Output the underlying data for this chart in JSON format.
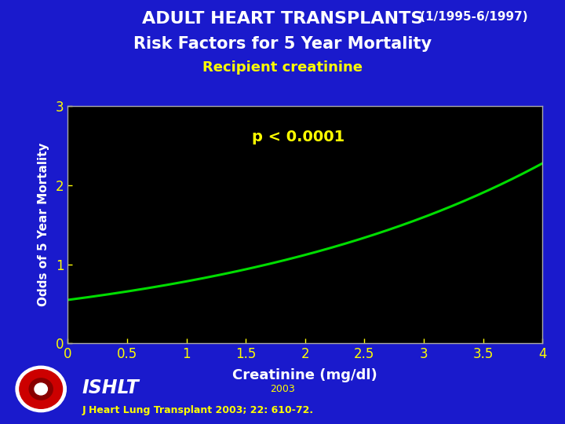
{
  "title_line1_main": "ADULT HEART TRANSPLANTS",
  "title_line1_suffix": " (1/1995-6/1997)",
  "title_line2": "Risk Factors for 5 Year Mortality",
  "title_line3": "Recipient creatinine",
  "xlabel": "Creatinine (mg/dl)",
  "ylabel": "Odds of 5 Year Mortality",
  "annotation": "p < 0.0001",
  "x_min": 0,
  "x_max": 4,
  "y_min": 0,
  "y_max": 3,
  "x_ticks": [
    0,
    0.5,
    1,
    1.5,
    2,
    2.5,
    3,
    3.5,
    4
  ],
  "y_ticks": [
    0,
    1,
    2,
    3
  ],
  "bg_outer": "#1a1acc",
  "bg_plot": "#000000",
  "line_color": "#00dd00",
  "title_color1": "#ffffff",
  "title_color2": "#ffffff",
  "title_color3": "#ffff00",
  "annotation_color": "#ffff00",
  "tick_color": "#ffff00",
  "axis_label_color": "#ffffff",
  "spine_color": "#aaaaaa",
  "ishlt_text": "ISHLT",
  "year_text": "2003",
  "citation": "J Heart Lung Transplant 2003; 22: 610-72.",
  "citation_color": "#ffff00",
  "ishlt_color": "#ffffff",
  "curve_a": 0.55,
  "curve_b": 0.355
}
